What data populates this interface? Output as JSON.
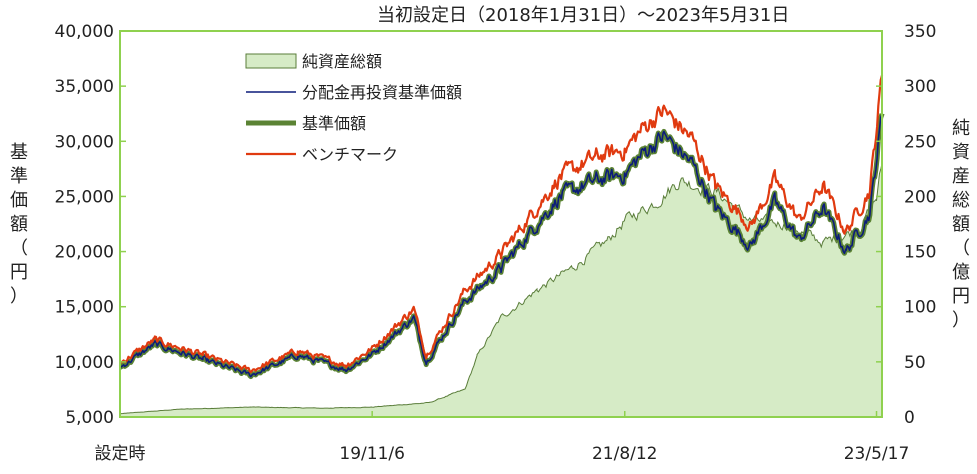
{
  "chart_data": {
    "type": "line",
    "title": "当初設定日（2018年1月31日）～2023年5月31日",
    "ylabel_left": [
      "基",
      "準",
      "価",
      "額",
      "（",
      "円",
      "）"
    ],
    "ylabel_right": [
      "純",
      "資",
      "産",
      "総",
      "額",
      "（",
      "億",
      "円",
      "）"
    ],
    "x_tick_labels": [
      "設定時",
      "19/11/6",
      "21/8/12",
      "23/5/17"
    ],
    "x_tick_dates": [
      "2018-01-31",
      "2019-11-06",
      "2021-08-12",
      "2023-05-17"
    ],
    "x_range": [
      "2018-01-31",
      "2023-05-31"
    ],
    "ylim_left": [
      5000,
      40000
    ],
    "yticks_left": [
      "5,000",
      "10,000",
      "15,000",
      "20,000",
      "25,000",
      "30,000",
      "35,000",
      "40,000"
    ],
    "ylim_right": [
      0,
      350
    ],
    "yticks_right": [
      "0",
      "50",
      "100",
      "150",
      "200",
      "250",
      "300",
      "350"
    ],
    "grid": false,
    "legend_position": "top-left",
    "colors": {
      "area_fill": "#d6ebc6",
      "area_line": "#5a7d3a",
      "reinvested": "#0c1c7a",
      "nav": "#5b8334",
      "benchmark": "#e03a10",
      "plot_border": "#8fd14f"
    },
    "series": [
      {
        "name": "純資産総額",
        "axis": "right",
        "style": "area",
        "x": [
          "2018-01-31",
          "2018-06-30",
          "2018-12-31",
          "2019-06-30",
          "2019-11-06",
          "2020-03-31",
          "2020-06-30",
          "2020-07-31",
          "2020-09-30",
          "2020-12-31",
          "2021-03-31",
          "2021-06-30",
          "2021-08-12",
          "2021-10-31",
          "2021-12-31",
          "2022-03-31",
          "2022-06-30",
          "2022-09-30",
          "2022-12-31",
          "2023-03-31",
          "2023-05-17",
          "2023-05-31"
        ],
        "values": [
          3,
          7,
          9,
          8,
          9,
          13,
          25,
          55,
          90,
          115,
          135,
          160,
          178,
          195,
          215,
          205,
          178,
          175,
          158,
          170,
          198,
          230
        ]
      },
      {
        "name": "分配金再投資基準価額",
        "axis": "left",
        "style": "line",
        "x": [
          "2018-01-31",
          "2018-04-30",
          "2018-08-31",
          "2018-12-31",
          "2019-04-30",
          "2019-08-31",
          "2019-11-06",
          "2020-02-20",
          "2020-03-23",
          "2020-06-30",
          "2020-09-30",
          "2020-12-31",
          "2021-02-28",
          "2021-05-31",
          "2021-08-12",
          "2021-09-30",
          "2021-11-20",
          "2022-01-31",
          "2022-03-31",
          "2022-06-30",
          "2022-08-31",
          "2022-10-31",
          "2022-12-31",
          "2023-02-28",
          "2023-04-30",
          "2023-05-31"
        ],
        "values": [
          9500,
          11600,
          10200,
          8800,
          10600,
          9300,
          10700,
          14000,
          10000,
          15500,
          18500,
          22500,
          25000,
          26500,
          27000,
          29000,
          30500,
          28000,
          24000,
          20500,
          24500,
          21000,
          24000,
          20000,
          23500,
          32500
        ]
      },
      {
        "name": "基準価額",
        "axis": "left",
        "style": "line",
        "x": [
          "2018-01-31",
          "2018-04-30",
          "2018-08-31",
          "2018-12-31",
          "2019-04-30",
          "2019-08-31",
          "2019-11-06",
          "2020-02-20",
          "2020-03-23",
          "2020-06-30",
          "2020-09-30",
          "2020-12-31",
          "2021-02-28",
          "2021-05-31",
          "2021-08-12",
          "2021-09-30",
          "2021-11-20",
          "2022-01-31",
          "2022-03-31",
          "2022-06-30",
          "2022-08-31",
          "2022-10-31",
          "2022-12-31",
          "2023-02-28",
          "2023-04-30",
          "2023-05-31"
        ],
        "values": [
          9500,
          11600,
          10200,
          8800,
          10600,
          9300,
          10700,
          14000,
          10000,
          15500,
          18500,
          22500,
          25000,
          26500,
          27000,
          29000,
          30500,
          28000,
          24000,
          20500,
          24500,
          21000,
          24000,
          20000,
          23500,
          32500
        ]
      },
      {
        "name": "ベンチマーク",
        "axis": "left",
        "style": "line",
        "x": [
          "2018-01-31",
          "2018-04-30",
          "2018-08-31",
          "2018-12-31",
          "2019-04-30",
          "2019-08-31",
          "2019-11-06",
          "2020-02-20",
          "2020-03-23",
          "2020-06-30",
          "2020-09-30",
          "2020-12-31",
          "2021-02-28",
          "2021-05-31",
          "2021-08-12",
          "2021-09-30",
          "2021-11-20",
          "2022-01-31",
          "2022-03-31",
          "2022-06-30",
          "2022-08-31",
          "2022-10-31",
          "2022-12-31",
          "2023-02-28",
          "2023-04-30",
          "2023-05-31"
        ],
        "values": [
          9900,
          12000,
          10600,
          9200,
          11000,
          9700,
          11200,
          14800,
          10600,
          16500,
          19800,
          24000,
          26800,
          28600,
          29200,
          31300,
          32800,
          30200,
          26000,
          22300,
          26500,
          22800,
          26000,
          21800,
          25600,
          36000
        ]
      }
    ]
  }
}
